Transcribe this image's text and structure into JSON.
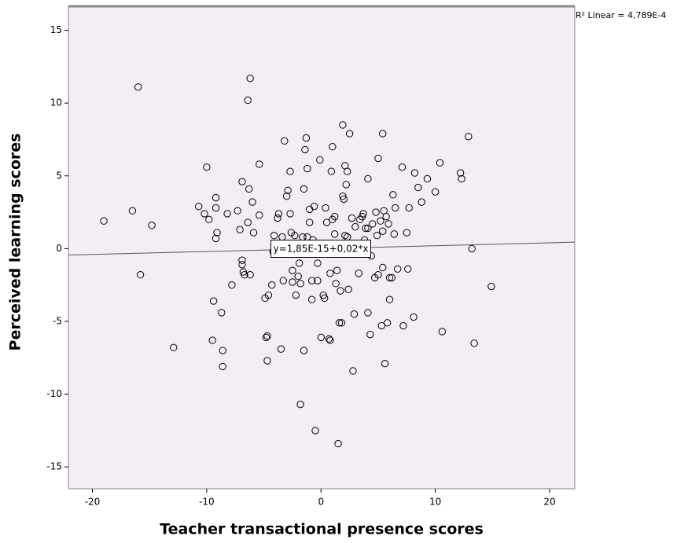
{
  "chart_data": {
    "type": "scatter",
    "x_label": "Teacher transactional presence scores",
    "y_label": "Perceived learning scores",
    "fit_label": "y=1,85E-15+0,02*x",
    "r2_label": "R² Linear = 4,789E-4",
    "fit": {
      "intercept": 1.85e-15,
      "slope": 0.02
    },
    "color": "#000000",
    "background": "#f4eef4",
    "fit_color": "#555555",
    "xlim": [
      -22.1,
      22.2
    ],
    "ylim": [
      -16.5,
      16.65
    ],
    "xticks": [
      -20,
      -10,
      0,
      10,
      20
    ],
    "yticks": [
      -15,
      -10,
      -5,
      0,
      5,
      10,
      15
    ],
    "x": [
      -19.0,
      -16.0,
      -16.5,
      -15.8,
      -14.8,
      -12.9,
      -10.0,
      -10.7,
      -10.2,
      -9.8,
      -9.2,
      -9.2,
      -9.1,
      -9.2,
      -9.4,
      -9.5,
      -8.7,
      -8.6,
      -8.6,
      -8.2,
      -7.8,
      -7.3,
      -6.9,
      -7.1,
      -6.9,
      -6.9,
      -6.8,
      -6.7,
      -6.4,
      -6.2,
      -6.3,
      -6.4,
      -6.2,
      -6.0,
      -5.9,
      -5.4,
      -5.4,
      -4.9,
      -4.7,
      -4.7,
      -4.8,
      -4.6,
      -4.3,
      -4.2,
      -4.1,
      -3.8,
      -3.7,
      -3.5,
      -3.4,
      -3.3,
      -3.2,
      -3.0,
      -2.9,
      -2.7,
      -2.7,
      -2.6,
      -2.5,
      -2.5,
      -2.3,
      -2.2,
      -1.8,
      -1.5,
      -2.0,
      -1.9,
      -1.8,
      -1.6,
      -1.5,
      -1.4,
      -1.3,
      -1.2,
      -1.2,
      -1.0,
      -1.0,
      -0.8,
      -0.8,
      -0.7,
      -0.6,
      -0.5,
      -0.3,
      -0.3,
      -0.1,
      0,
      0.1,
      0.2,
      0.3,
      0.4,
      0.5,
      0.7,
      0.8,
      0.8,
      0.9,
      1.0,
      1.0,
      1.2,
      1.2,
      1.3,
      1.4,
      1.5,
      1.6,
      1.7,
      1.8,
      1.9,
      1.9,
      2.0,
      2.1,
      2.1,
      2.2,
      2.3,
      2.3,
      2.4,
      2.5,
      2.7,
      2.8,
      2.9,
      3.0,
      3.2,
      3.3,
      3.4,
      3.6,
      3.7,
      3.8,
      3.9,
      4.1,
      4.1,
      4.1,
      4.3,
      4.4,
      4.5,
      4.7,
      4.8,
      4.9,
      5.0,
      5.0,
      5.2,
      5.3,
      5.4,
      5.4,
      5.4,
      5.5,
      5.6,
      5.7,
      5.8,
      5.9,
      6.0,
      6.0,
      6.2,
      6.3,
      6.4,
      6.5,
      6.7,
      7.1,
      7.2,
      7.5,
      7.6,
      7.7,
      8.1,
      8.2,
      8.5,
      8.8,
      9.3,
      10.0,
      10.4,
      10.6,
      12.2,
      12.3,
      12.9,
      13.2,
      13.4,
      14.9
    ],
    "y": [
      1.9,
      11.1,
      2.6,
      -1.8,
      1.6,
      -6.8,
      5.6,
      2.9,
      2.4,
      2.0,
      3.5,
      2.8,
      1.1,
      0.7,
      -3.6,
      -6.3,
      -4.4,
      -7.0,
      -8.1,
      2.4,
      -2.5,
      2.6,
      4.6,
      1.3,
      -0.8,
      -1.1,
      -1.6,
      -1.8,
      10.2,
      11.7,
      4.1,
      1.8,
      -1.8,
      3.2,
      1.1,
      5.8,
      2.3,
      -3.4,
      -6.0,
      -7.7,
      -6.1,
      -3.2,
      -2.5,
      -0.2,
      0.9,
      2.1,
      2.4,
      -6.9,
      0.8,
      -2.2,
      7.4,
      3.6,
      4.0,
      5.3,
      2.4,
      1.1,
      -1.5,
      -2.3,
      0.9,
      -3.2,
      -10.7,
      -7.0,
      -1.9,
      -1.0,
      -2.4,
      0.8,
      4.1,
      6.8,
      7.6,
      5.5,
      0.8,
      2.7,
      1.8,
      -3.5,
      -2.2,
      0.6,
      2.9,
      -12.5,
      -1.0,
      -2.2,
      6.1,
      -6.1,
      0,
      -3.2,
      -3.4,
      2.8,
      1.8,
      -6.2,
      -1.7,
      -6.3,
      5.3,
      2.0,
      7.0,
      2.2,
      1.0,
      -2.4,
      -1.5,
      -13.4,
      -5.1,
      -2.9,
      -5.1,
      3.6,
      8.5,
      3.4,
      5.7,
      0.9,
      4.4,
      5.3,
      0.8,
      -2.8,
      7.9,
      2.1,
      -8.4,
      -4.5,
      1.5,
      -0.2,
      -1.7,
      2.0,
      2.2,
      2.4,
      0.6,
      1.4,
      1.4,
      4.8,
      -4.4,
      -5.9,
      -0.5,
      1.7,
      -2.0,
      2.5,
      0.9,
      6.2,
      -1.8,
      1.9,
      -5.3,
      1.2,
      7.9,
      -1.3,
      2.6,
      -7.9,
      2.2,
      -5.1,
      1.7,
      -3.5,
      -2.0,
      -2.0,
      3.7,
      1.0,
      2.8,
      -1.4,
      5.6,
      -5.3,
      1.1,
      -1.4,
      2.8,
      -4.7,
      5.2,
      4.2,
      3.2,
      4.8,
      3.9,
      5.9,
      -5.7,
      5.2,
      4.8,
      7.7,
      0.0,
      -6.5,
      -2.6
    ]
  }
}
